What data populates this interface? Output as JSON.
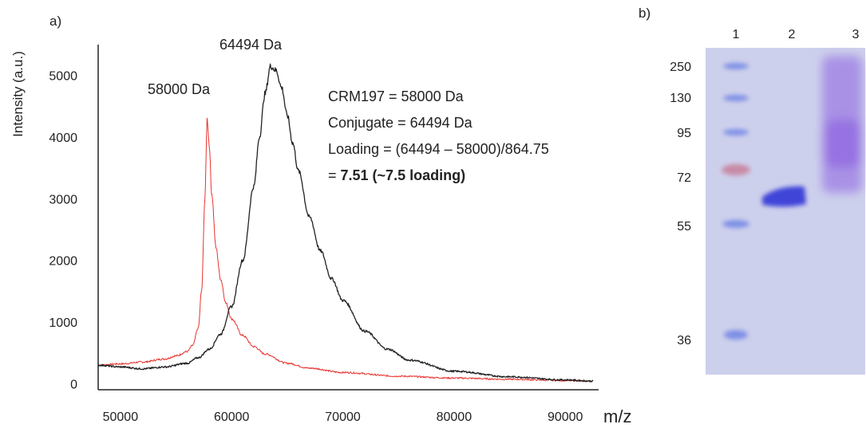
{
  "panel_a": {
    "label": "a)",
    "ylabel": "Intensity (a.u.)",
    "xlabel": "m/z",
    "peak_labels": [
      "58000 Da",
      "64494 Da"
    ],
    "annotation": {
      "line1": "CRM197 = 58000 Da",
      "line2": "Conjugate = 64494 Da",
      "line3": "Loading = (64494 – 58000)/864.75",
      "line4_prefix": "= ",
      "line4_bold": "7.51 (~7.5 loading)"
    }
  },
  "panel_b": {
    "label": "b)",
    "lanes": [
      "1",
      "2",
      "3"
    ],
    "markers": [
      "250",
      "130",
      "95",
      "72",
      "55",
      "36"
    ],
    "colors": {
      "gel": "#cdd0ec",
      "band_strong": "#3f45d8",
      "band_smear": "#8a5fe0",
      "marker_blue": "#7e8fe6",
      "marker_red": "#c88aa6"
    }
  },
  "chart_data": {
    "type": "line",
    "title": "",
    "xlabel": "m/z",
    "ylabel": "Intensity (a.u.)",
    "xlim": [
      48000,
      93000
    ],
    "ylim": [
      -100,
      5500
    ],
    "xticks": [
      "50000",
      "60000",
      "70000",
      "80000",
      "90000"
    ],
    "yticks": [
      "0",
      "1000",
      "2000",
      "3000",
      "4000",
      "5000"
    ],
    "series": [
      {
        "color": "#e8332f",
        "peak_label": "58000 Da",
        "x": [
          48000,
          50000,
          52000,
          54000,
          55000,
          56000,
          56500,
          57000,
          57300,
          57600,
          57800,
          58000,
          58200,
          58600,
          59000,
          59500,
          60000,
          61000,
          62000,
          63000,
          65000,
          67000,
          70000,
          75000,
          80000,
          85000,
          90000,
          92500
        ],
        "y": [
          300,
          320,
          350,
          400,
          450,
          520,
          620,
          900,
          1500,
          3000,
          4300,
          3850,
          3100,
          2200,
          1700,
          1300,
          1050,
          780,
          600,
          480,
          330,
          250,
          180,
          120,
          90,
          70,
          50,
          40
        ]
      },
      {
        "color": "#222222",
        "peak_label": "64494 Da",
        "x": [
          48000,
          50000,
          52000,
          54000,
          56000,
          57000,
          58000,
          59000,
          60000,
          61000,
          62000,
          62500,
          63000,
          63500,
          64000,
          64500,
          65000,
          65500,
          66000,
          67000,
          68000,
          69000,
          70000,
          72000,
          74000,
          76000,
          80000,
          85000,
          90000,
          92500
        ],
        "y": [
          300,
          270,
          240,
          270,
          330,
          420,
          560,
          800,
          1250,
          2000,
          3200,
          4000,
          4700,
          5150,
          5080,
          4800,
          4350,
          3900,
          3450,
          2700,
          2150,
          1700,
          1350,
          850,
          560,
          380,
          200,
          110,
          60,
          40
        ]
      }
    ]
  }
}
